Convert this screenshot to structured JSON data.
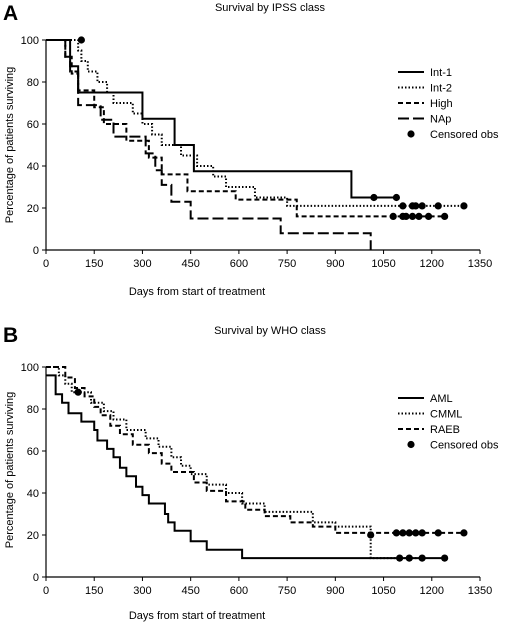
{
  "chart_data": [
    {
      "panel": "A",
      "type": "line",
      "title": "Survival by IPSS class",
      "xlabel": "Days from start of treatment",
      "ylabel": "Percentage of patients surviving",
      "xlim": [
        0,
        1350
      ],
      "ylim": [
        0,
        100
      ],
      "xticks": [
        0,
        150,
        300,
        450,
        600,
        750,
        900,
        1050,
        1200,
        1350
      ],
      "yticks": [
        0,
        20,
        40,
        60,
        80,
        100
      ],
      "legend_position": "top-right",
      "censor_label": "Censored obs",
      "series": [
        {
          "name": "Int-1",
          "style": "solid",
          "steps": [
            [
              0,
              100
            ],
            [
              75,
              87.5
            ],
            [
              100,
              75
            ],
            [
              300,
              62.5
            ],
            [
              400,
              50
            ],
            [
              460,
              37.5
            ],
            [
              950,
              25
            ],
            [
              1090,
              25
            ]
          ],
          "censored": [
            [
              1020,
              25
            ],
            [
              1090,
              25
            ]
          ]
        },
        {
          "name": "Int-2",
          "style": "dotted",
          "steps": [
            [
              0,
              100
            ],
            [
              100,
              95
            ],
            [
              110,
              90
            ],
            [
              130,
              85
            ],
            [
              160,
              80
            ],
            [
              190,
              75
            ],
            [
              210,
              70
            ],
            [
              270,
              65
            ],
            [
              300,
              60
            ],
            [
              330,
              55
            ],
            [
              360,
              50
            ],
            [
              420,
              45
            ],
            [
              470,
              40
            ],
            [
              520,
              35
            ],
            [
              560,
              30
            ],
            [
              650,
              25
            ],
            [
              750,
              21
            ],
            [
              1300,
              21
            ]
          ],
          "censored": [
            [
              110,
              100
            ],
            [
              1110,
              21
            ],
            [
              1140,
              21
            ],
            [
              1150,
              21
            ],
            [
              1170,
              21
            ],
            [
              1220,
              21
            ],
            [
              1300,
              21
            ]
          ]
        },
        {
          "name": "High",
          "style": "dashed",
          "steps": [
            [
              0,
              100
            ],
            [
              60,
              92
            ],
            [
              80,
              84
            ],
            [
              100,
              76
            ],
            [
              150,
              68
            ],
            [
              180,
              60
            ],
            [
              250,
              52
            ],
            [
              320,
              44
            ],
            [
              360,
              36
            ],
            [
              440,
              28
            ],
            [
              590,
              24
            ],
            [
              780,
              16
            ],
            [
              1240,
              16
            ]
          ],
          "censored": [
            [
              1080,
              16
            ],
            [
              1110,
              16
            ],
            [
              1120,
              16
            ],
            [
              1140,
              16
            ],
            [
              1160,
              16
            ],
            [
              1190,
              16
            ],
            [
              1240,
              16
            ]
          ]
        },
        {
          "name": "NAp",
          "style": "longdash",
          "steps": [
            [
              0,
              100
            ],
            [
              60,
              92
            ],
            [
              75,
              85
            ],
            [
              100,
              69
            ],
            [
              170,
              62
            ],
            [
              210,
              54
            ],
            [
              310,
              46
            ],
            [
              340,
              38
            ],
            [
              360,
              31
            ],
            [
              390,
              23
            ],
            [
              450,
              15
            ],
            [
              730,
              8
            ],
            [
              1010,
              0
            ]
          ],
          "censored": []
        }
      ]
    },
    {
      "panel": "B",
      "type": "line",
      "title": "Survival by WHO class",
      "xlabel": "Days from start of treatment",
      "ylabel": "Percentage of patients surviving",
      "xlim": [
        0,
        1350
      ],
      "ylim": [
        0,
        100
      ],
      "xticks": [
        0,
        150,
        300,
        450,
        600,
        750,
        900,
        1050,
        1200,
        1350
      ],
      "yticks": [
        0,
        20,
        40,
        60,
        80,
        100
      ],
      "legend_position": "top-right",
      "censor_label": "Censored obs",
      "series": [
        {
          "name": "AML",
          "style": "solid",
          "steps": [
            [
              0,
              96
            ],
            [
              30,
              87
            ],
            [
              50,
              83
            ],
            [
              70,
              78
            ],
            [
              110,
              74
            ],
            [
              150,
              70
            ],
            [
              160,
              65
            ],
            [
              190,
              61
            ],
            [
              210,
              57
            ],
            [
              230,
              52
            ],
            [
              250,
              48
            ],
            [
              280,
              43
            ],
            [
              300,
              39
            ],
            [
              320,
              35
            ],
            [
              370,
              30
            ],
            [
              380,
              26
            ],
            [
              400,
              22
            ],
            [
              450,
              17
            ],
            [
              500,
              13
            ],
            [
              610,
              9
            ],
            [
              1240,
              9
            ]
          ],
          "censored": [
            [
              1240,
              9
            ]
          ]
        },
        {
          "name": "CMML",
          "style": "dotted",
          "steps": [
            [
              0,
              100
            ],
            [
              40,
              96
            ],
            [
              60,
              92
            ],
            [
              80,
              88
            ],
            [
              140,
              83
            ],
            [
              180,
              79
            ],
            [
              210,
              75
            ],
            [
              250,
              70
            ],
            [
              310,
              66
            ],
            [
              350,
              62
            ],
            [
              390,
              57
            ],
            [
              420,
              53
            ],
            [
              450,
              49
            ],
            [
              500,
              44
            ],
            [
              560,
              40
            ],
            [
              610,
              35
            ],
            [
              680,
              31
            ],
            [
              830,
              26
            ],
            [
              900,
              24
            ],
            [
              1010,
              9
            ],
            [
              1170,
              9
            ]
          ],
          "censored": [
            [
              100,
              88
            ],
            [
              1100,
              9
            ],
            [
              1130,
              9
            ],
            [
              1170,
              9
            ]
          ]
        },
        {
          "name": "RAEB",
          "style": "dashed",
          "steps": [
            [
              0,
              100
            ],
            [
              60,
              95
            ],
            [
              90,
              90
            ],
            [
              120,
              86
            ],
            [
              150,
              81
            ],
            [
              170,
              77
            ],
            [
              200,
              72
            ],
            [
              230,
              68
            ],
            [
              270,
              63
            ],
            [
              320,
              59
            ],
            [
              360,
              54
            ],
            [
              390,
              50
            ],
            [
              460,
              45
            ],
            [
              500,
              41
            ],
            [
              560,
              36
            ],
            [
              620,
              32
            ],
            [
              680,
              29
            ],
            [
              760,
              26
            ],
            [
              830,
              24
            ],
            [
              900,
              21
            ],
            [
              1300,
              21
            ]
          ],
          "censored": [
            [
              1010,
              20
            ],
            [
              1090,
              21
            ],
            [
              1110,
              21
            ],
            [
              1130,
              21
            ],
            [
              1150,
              21
            ],
            [
              1170,
              21
            ],
            [
              1220,
              21
            ],
            [
              1300,
              21
            ]
          ]
        }
      ]
    }
  ]
}
